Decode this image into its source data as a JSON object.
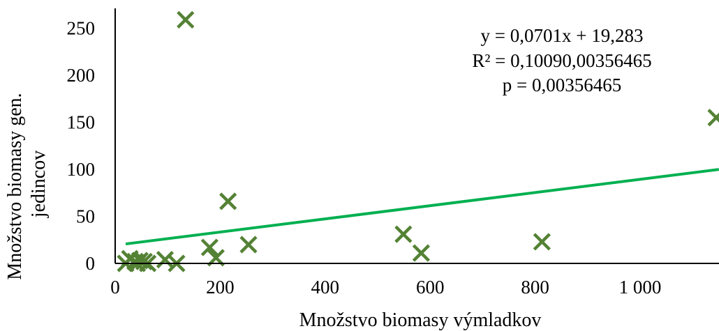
{
  "chart_data": {
    "type": "scatter",
    "title": "",
    "xlabel": "Množstvo biomasy výmladkov",
    "ylabel": [
      "Množstvo biomasy gen.",
      "jedincov"
    ],
    "xlim": [
      0,
      1150
    ],
    "ylim": [
      0,
      270
    ],
    "xticks": [
      {
        "value": 0,
        "label": "0"
      },
      {
        "value": 200,
        "label": "200"
      },
      {
        "value": 400,
        "label": "400"
      },
      {
        "value": 600,
        "label": "600"
      },
      {
        "value": 800,
        "label": "800"
      },
      {
        "value": 1000,
        "label": "1 000"
      }
    ],
    "yticks": [
      {
        "value": 0,
        "label": "0"
      },
      {
        "value": 50,
        "label": "50"
      },
      {
        "value": 100,
        "label": "100"
      },
      {
        "value": 150,
        "label": "150"
      },
      {
        "value": 200,
        "label": "200"
      },
      {
        "value": 250,
        "label": "250"
      }
    ],
    "grid": false,
    "legend": "none",
    "series": [
      {
        "marker": "x",
        "color": "#548235",
        "points": [
          {
            "x": 20,
            "y": 0
          },
          {
            "x": 28,
            "y": 5
          },
          {
            "x": 38,
            "y": 2
          },
          {
            "x": 42,
            "y": 0
          },
          {
            "x": 47,
            "y": 3
          },
          {
            "x": 55,
            "y": 2
          },
          {
            "x": 62,
            "y": 0
          },
          {
            "x": 95,
            "y": 4
          },
          {
            "x": 117,
            "y": 0
          },
          {
            "x": 134,
            "y": 259
          },
          {
            "x": 180,
            "y": 17
          },
          {
            "x": 192,
            "y": 6
          },
          {
            "x": 215,
            "y": 66
          },
          {
            "x": 254,
            "y": 20
          },
          {
            "x": 549,
            "y": 31
          },
          {
            "x": 583,
            "y": 11
          },
          {
            "x": 813,
            "y": 23
          },
          {
            "x": 1145,
            "y": 155
          }
        ]
      }
    ],
    "trendline": {
      "type": "linear",
      "color": "#00b050",
      "slope": 0.0701,
      "intercept": 19.283,
      "x_range": [
        20,
        1150
      ]
    },
    "annotations": [
      "y = 0,0701x  + 19,283",
      "R² = 0,10090,00356465",
      "p = 0,00356465"
    ]
  }
}
